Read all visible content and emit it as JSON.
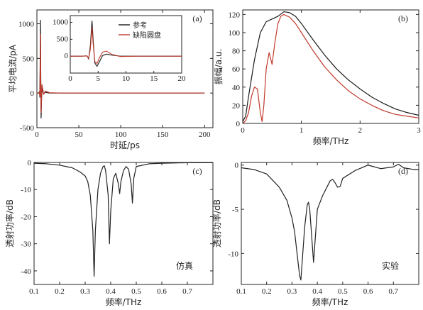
{
  "colors": {
    "reference": "#1a1a1a",
    "defect": "#c0392b",
    "sim": "#222222"
  },
  "chart_data": [
    {
      "id": "a",
      "type": "line",
      "panel_label": "(a)",
      "xlabel": "时延/ps",
      "ylabel": "平均电流/pA",
      "xlim": [
        0,
        210
      ],
      "ylim": [
        -500,
        1200
      ],
      "xticks": [
        0,
        50,
        100,
        150,
        200
      ],
      "yticks": [
        -500,
        0,
        500,
        1000
      ],
      "series": [
        {
          "name": "参考",
          "color": "#1a1a1a",
          "x": [
            0,
            2,
            3,
            3.5,
            4,
            4.3,
            4.6,
            5,
            5.5,
            6,
            7,
            8,
            10,
            15,
            30,
            60,
            100,
            150,
            200
          ],
          "y": [
            0,
            0,
            20,
            -60,
            600,
            1050,
            300,
            -360,
            -120,
            80,
            20,
            -10,
            10,
            0,
            0,
            0,
            0,
            0,
            0
          ]
        },
        {
          "name": "缺陷圆盘",
          "color": "#c0392b",
          "x": [
            0,
            2,
            3,
            3.5,
            4,
            4.3,
            4.6,
            5,
            5.5,
            6,
            7,
            8,
            10,
            15,
            30,
            60,
            100,
            150,
            200
          ],
          "y": [
            0,
            0,
            10,
            -40,
            420,
            850,
            200,
            -280,
            -80,
            120,
            60,
            -20,
            30,
            5,
            0,
            0,
            0,
            0,
            0
          ]
        }
      ],
      "inset": {
        "xlim": [
          0,
          20
        ],
        "ylim": [
          -500,
          1200
        ],
        "xticks": [
          0,
          5,
          10,
          15,
          20
        ],
        "yticks": [
          0,
          500,
          1000
        ],
        "series": [
          {
            "name": "参考",
            "color": "#1a1a1a",
            "x": [
              0,
              2,
              3,
              3.3,
              3.6,
              3.9,
              4.1,
              4.4,
              4.8,
              5.2,
              5.8,
              6.5,
              7.5,
              9,
              12,
              20
            ],
            "y": [
              0,
              0,
              10,
              -80,
              300,
              1050,
              500,
              -200,
              -300,
              -180,
              20,
              60,
              30,
              0,
              0,
              0
            ]
          },
          {
            "name": "缺陷圆盘",
            "color": "#c0392b",
            "x": [
              0,
              2,
              3,
              3.3,
              3.6,
              3.9,
              4.1,
              4.4,
              4.8,
              5.2,
              5.8,
              6.5,
              7.5,
              9,
              12,
              20
            ],
            "y": [
              0,
              0,
              5,
              -60,
              200,
              850,
              380,
              -150,
              -220,
              -60,
              120,
              150,
              50,
              -10,
              0,
              0
            ]
          }
        ]
      },
      "legend": [
        "参考",
        "缺陷圆盘"
      ]
    },
    {
      "id": "b",
      "type": "line",
      "panel_label": "(b)",
      "xlabel": "频率/THz",
      "ylabel": "振幅/a.u.",
      "xlim": [
        0,
        3
      ],
      "ylim": [
        0,
        125
      ],
      "xticks": [
        0,
        1,
        2,
        3
      ],
      "yticks": [
        0,
        20,
        40,
        60,
        80,
        100,
        120
      ],
      "series": [
        {
          "name": "参考",
          "color": "#1a1a1a",
          "x": [
            0,
            0.05,
            0.1,
            0.2,
            0.3,
            0.4,
            0.5,
            0.6,
            0.7,
            0.8,
            0.9,
            1.0,
            1.2,
            1.4,
            1.6,
            1.8,
            2.0,
            2.2,
            2.4,
            2.6,
            2.8,
            3.0
          ],
          "y": [
            2,
            8,
            30,
            70,
            100,
            112,
            115,
            118,
            123,
            122,
            118,
            110,
            92,
            75,
            60,
            48,
            38,
            29,
            22,
            16,
            12,
            9
          ]
        },
        {
          "name": "缺陷圆盘",
          "color": "#c0392b",
          "x": [
            0,
            0.05,
            0.1,
            0.15,
            0.2,
            0.25,
            0.3,
            0.33,
            0.36,
            0.4,
            0.45,
            0.5,
            0.55,
            0.6,
            0.65,
            0.7,
            0.8,
            0.9,
            1.0,
            1.2,
            1.4,
            1.6,
            1.8,
            2.0,
            2.2,
            2.4,
            2.6,
            2.8,
            3.0
          ],
          "y": [
            0,
            3,
            12,
            30,
            40,
            38,
            12,
            2,
            20,
            60,
            78,
            65,
            90,
            110,
            118,
            120,
            117,
            110,
            100,
            80,
            62,
            48,
            36,
            27,
            20,
            14,
            10,
            8,
            6
          ]
        }
      ]
    },
    {
      "id": "c",
      "type": "line",
      "panel_label": "(c)",
      "note": "仿真",
      "xlabel": "频率/THz",
      "ylabel": "透射功率/dB",
      "xlim": [
        0.1,
        0.8
      ],
      "ylim": [
        -45,
        0
      ],
      "xticks": [
        0.1,
        0.2,
        0.3,
        0.4,
        0.5,
        0.6,
        0.7
      ],
      "yticks": [
        0,
        -10,
        -20,
        -30,
        -40
      ],
      "series": [
        {
          "name": "sim",
          "color": "#222222",
          "x": [
            0.1,
            0.15,
            0.2,
            0.25,
            0.28,
            0.3,
            0.31,
            0.32,
            0.33,
            0.335,
            0.34,
            0.35,
            0.36,
            0.37,
            0.375,
            0.38,
            0.39,
            0.395,
            0.4,
            0.41,
            0.42,
            0.43,
            0.435,
            0.44,
            0.45,
            0.46,
            0.47,
            0.48,
            0.485,
            0.49,
            0.5,
            0.55,
            0.6,
            0.65,
            0.7,
            0.75,
            0.8
          ],
          "y": [
            -0.3,
            -0.5,
            -1,
            -2,
            -3.5,
            -5,
            -7,
            -12,
            -25,
            -42,
            -25,
            -10,
            -4,
            -1.5,
            -1.2,
            -3,
            -12,
            -30,
            -18,
            -6,
            -4,
            -8,
            -11.5,
            -7,
            -3,
            -1.5,
            -2.5,
            -8,
            -15,
            -6,
            -1.5,
            -0.5,
            -0.3,
            -0.2,
            -0.1,
            -0.1,
            -0.1
          ]
        }
      ]
    },
    {
      "id": "d",
      "type": "line",
      "panel_label": "(d)",
      "note": "实验",
      "xlabel": "频率/THz",
      "ylabel": "透射功率/dB",
      "xlim": [
        0.1,
        0.8
      ],
      "ylim": [
        -13.5,
        0.3
      ],
      "xticks": [
        0.1,
        0.2,
        0.3,
        0.4,
        0.5,
        0.6,
        0.7
      ],
      "yticks": [
        0,
        -5,
        -10
      ],
      "series": [
        {
          "name": "exp",
          "color": "#222222",
          "x": [
            0.1,
            0.15,
            0.2,
            0.25,
            0.28,
            0.3,
            0.31,
            0.32,
            0.33,
            0.335,
            0.34,
            0.35,
            0.36,
            0.365,
            0.37,
            0.38,
            0.385,
            0.39,
            0.4,
            0.42,
            0.45,
            0.46,
            0.47,
            0.48,
            0.49,
            0.5,
            0.55,
            0.6,
            0.65,
            0.7,
            0.72,
            0.74,
            0.78,
            0.8
          ],
          "y": [
            -0.3,
            -0.5,
            -1,
            -2.5,
            -4,
            -6,
            -7.5,
            -10,
            -12.5,
            -13,
            -11,
            -7,
            -4.5,
            -4.2,
            -5,
            -9,
            -11,
            -9,
            -5,
            -3.5,
            -1.8,
            -1.6,
            -2,
            -2.5,
            -2.4,
            -1.5,
            -0.6,
            0,
            -0.4,
            -0.2,
            0.1,
            -0.3,
            -0.5,
            -0.5
          ]
        }
      ]
    }
  ]
}
